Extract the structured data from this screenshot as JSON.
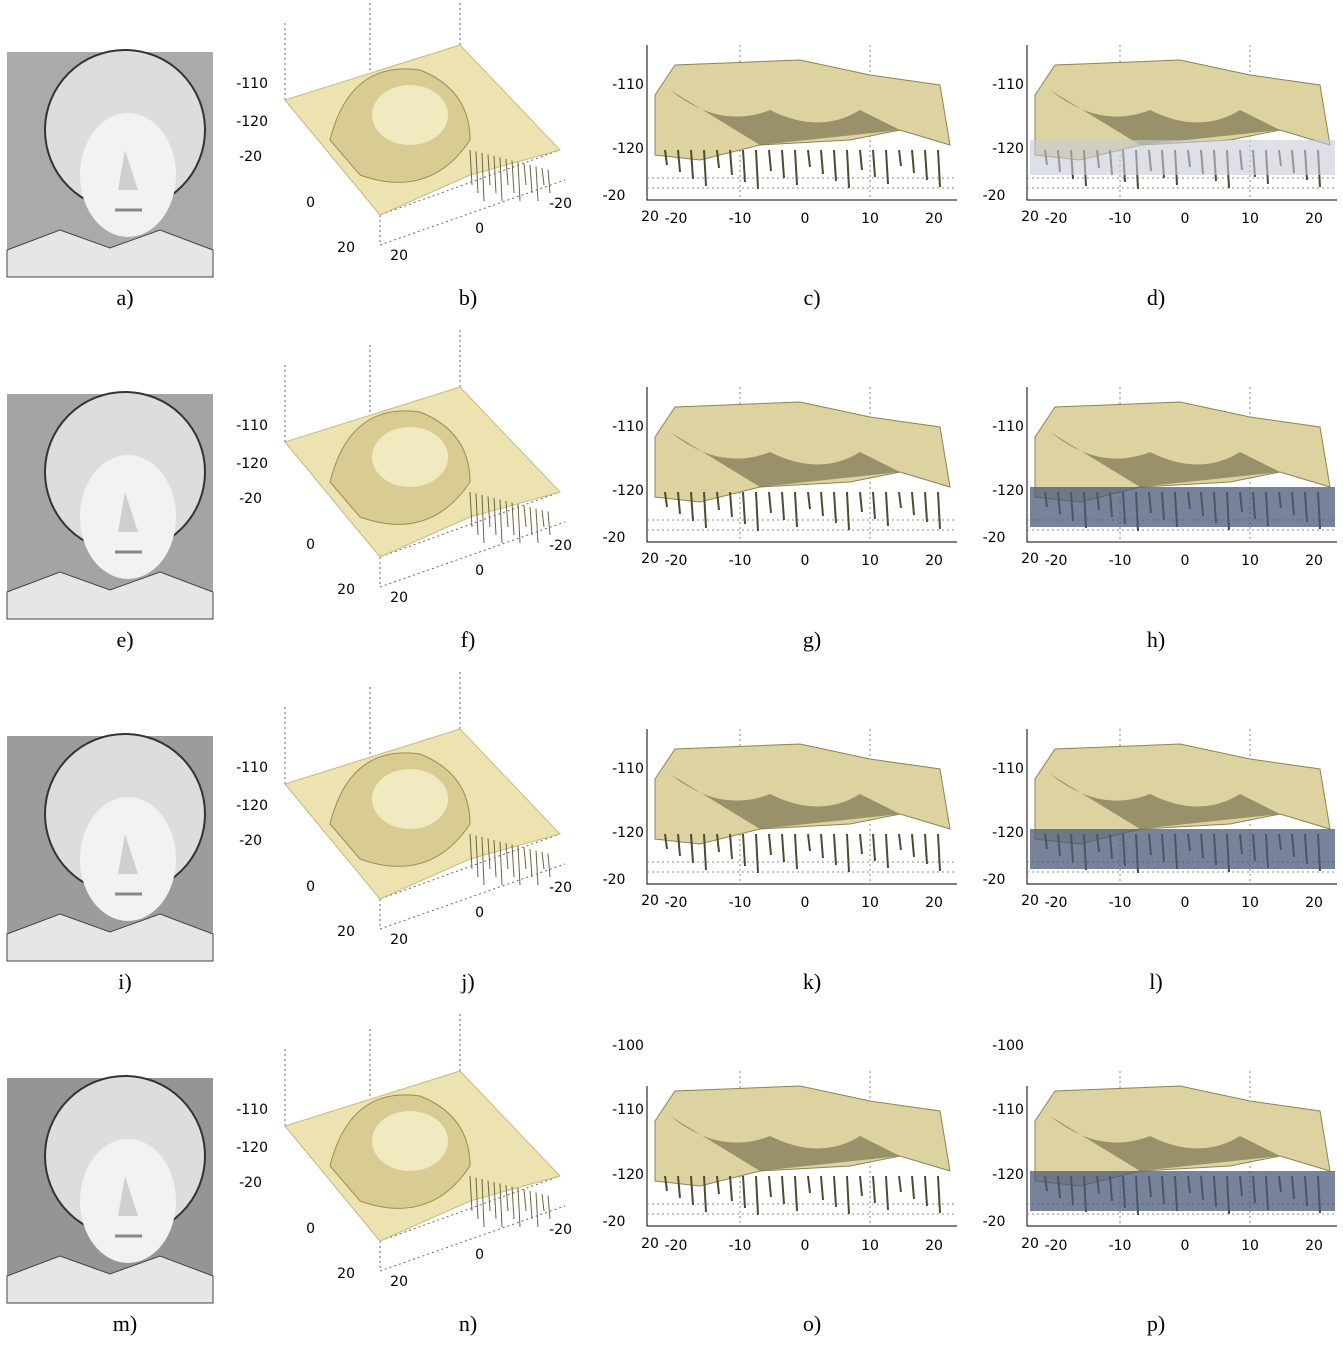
{
  "panels": [
    {
      "label": "a)"
    },
    {
      "label": "b)",
      "ticks": [
        "-110",
        "-120",
        "-20",
        "0",
        "20",
        "20",
        "0",
        "-20"
      ]
    },
    {
      "label": "c)",
      "ticks": [
        "-110",
        "-120",
        "-20",
        "20",
        "-20",
        "-10",
        "0",
        "10",
        "20"
      ]
    },
    {
      "label": "d)",
      "ticks": [
        "-110",
        "-120",
        "-20",
        "20",
        "-20",
        "-10",
        "0",
        "10",
        "20"
      ]
    },
    {
      "label": "e)"
    },
    {
      "label": "f)",
      "ticks": [
        "-110",
        "-120",
        "-20",
        "0",
        "20",
        "20",
        "0",
        "-20"
      ]
    },
    {
      "label": "g)",
      "ticks": [
        "-110",
        "-120",
        "-20",
        "20",
        "-20",
        "-10",
        "0",
        "10",
        "20"
      ]
    },
    {
      "label": "h)",
      "ticks": [
        "-110",
        "-120",
        "-20",
        "20",
        "-20",
        "-10",
        "0",
        "10",
        "20"
      ]
    },
    {
      "label": "i)"
    },
    {
      "label": "j)",
      "ticks": [
        "-110",
        "-120",
        "-20",
        "0",
        "20",
        "20",
        "0",
        "-20"
      ]
    },
    {
      "label": "k)",
      "ticks": [
        "-110",
        "-120",
        "-20",
        "20",
        "-20",
        "-10",
        "0",
        "10",
        "20"
      ]
    },
    {
      "label": "l)",
      "ticks": [
        "-110",
        "-120",
        "-20",
        "20",
        "-20",
        "-10",
        "0",
        "10",
        "20"
      ]
    },
    {
      "label": "m)"
    },
    {
      "label": "n)",
      "ticks": [
        "-110",
        "-120",
        "-20",
        "0",
        "20",
        "20",
        "0",
        "-20"
      ]
    },
    {
      "label": "o)",
      "ticks": [
        "-100",
        "-110",
        "-120",
        "-20",
        "20",
        "-20",
        "-10",
        "0",
        "10",
        "20"
      ]
    },
    {
      "label": "p)",
      "ticks": [
        "-100",
        "-110",
        "-120",
        "-20",
        "20",
        "-20",
        "-10",
        "0",
        "10",
        "20"
      ]
    }
  ]
}
